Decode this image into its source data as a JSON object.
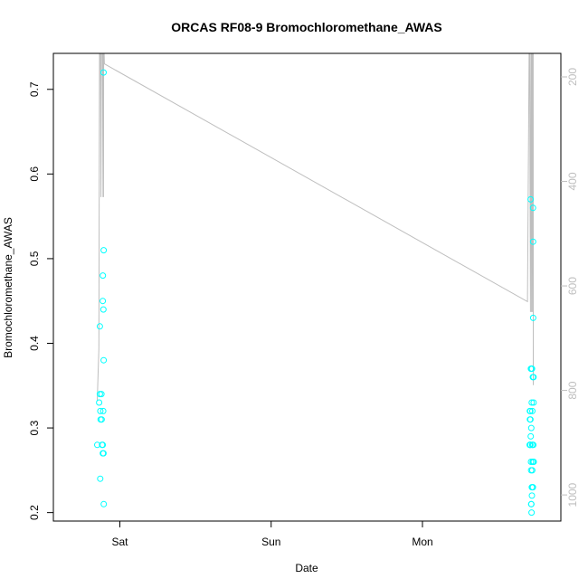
{
  "chart_data": {
    "type": "scatter",
    "title": "ORCAS RF08-9 Bromochloromethane_AWAS",
    "xlabel": "Date",
    "ylabel": "Bromochloromethane_AWAS",
    "x_ticks": [
      "Sat",
      "Sun",
      "Mon"
    ],
    "y_ticks": [
      0.2,
      0.3,
      0.4,
      0.5,
      0.6,
      0.7
    ],
    "y2_ticks": [
      200,
      400,
      600,
      800,
      1000
    ],
    "ylim": [
      0.19,
      0.7425
    ],
    "y2lim": [
      1050,
      155
    ],
    "grid": false,
    "colors": {
      "points": "#00ffff",
      "line": "#bebebe",
      "axis": "#000000",
      "right_axis": "#bebebe"
    },
    "series": [
      {
        "kind": "points",
        "points": [
          {
            "x": "Fri 20:25",
            "y": 0.28
          },
          {
            "x": "Fri 20:43",
            "y": 0.33
          },
          {
            "x": "Fri 20:50",
            "y": 0.42
          },
          {
            "x": "Fri 20:50",
            "y": 0.34
          },
          {
            "x": "Fri 20:53",
            "y": 0.24
          },
          {
            "x": "Fri 20:54",
            "y": 0.32
          },
          {
            "x": "Fri 20:57",
            "y": 0.31
          },
          {
            "x": "Fri 21:04",
            "y": 0.34
          },
          {
            "x": "Fri 21:07",
            "y": 0.31
          },
          {
            "x": "Fri 21:10",
            "y": 0.28
          },
          {
            "x": "Fri 21:17",
            "y": 0.28
          },
          {
            "x": "Fri 21:17",
            "y": 0.45
          },
          {
            "x": "Fri 21:18",
            "y": 0.48
          },
          {
            "x": "Fri 21:18",
            "y": 0.27
          },
          {
            "x": "Fri 21:22",
            "y": 0.32
          },
          {
            "x": "Fri 21:23",
            "y": 0.44
          },
          {
            "x": "Fri 21:24",
            "y": 0.27
          },
          {
            "x": "Fri 21:25",
            "y": 0.72
          },
          {
            "x": "Fri 21:26",
            "y": 0.51
          },
          {
            "x": "Fri 21:26",
            "y": 0.38
          },
          {
            "x": "Fri 21:27",
            "y": 0.21
          },
          {
            "x": "Mon 17:00",
            "y": 0.28
          },
          {
            "x": "Mon 17:02",
            "y": 0.32
          },
          {
            "x": "Mon 17:03",
            "y": 0.31
          },
          {
            "x": "Mon 17:04",
            "y": 0.28
          },
          {
            "x": "Mon 17:05",
            "y": 0.28
          },
          {
            "x": "Mon 17:06",
            "y": 0.32
          },
          {
            "x": "Mon 17:07",
            "y": 0.28
          },
          {
            "x": "Mon 17:08",
            "y": 0.31
          },
          {
            "x": "Mon 17:10",
            "y": 0.57
          },
          {
            "x": "Mon 17:11",
            "y": 0.29
          },
          {
            "x": "Mon 17:12",
            "y": 0.37
          },
          {
            "x": "Mon 17:13",
            "y": 0.26
          },
          {
            "x": "Mon 17:14",
            "y": 0.25
          },
          {
            "x": "Mon 17:15",
            "y": 0.21
          },
          {
            "x": "Mon 17:16",
            "y": 0.3
          },
          {
            "x": "Mon 17:17",
            "y": 0.21
          },
          {
            "x": "Mon 17:18",
            "y": 0.2
          },
          {
            "x": "Mon 17:19",
            "y": 0.37
          },
          {
            "x": "Mon 17:20",
            "y": 0.33
          },
          {
            "x": "Mon 17:21",
            "y": 0.23
          },
          {
            "x": "Mon 17:22",
            "y": 0.22
          },
          {
            "x": "Mon 17:23",
            "y": 0.37
          },
          {
            "x": "Mon 17:24",
            "y": 0.28
          },
          {
            "x": "Mon 17:25",
            "y": 0.25
          },
          {
            "x": "Mon 17:26",
            "y": 0.32
          },
          {
            "x": "Mon 17:27",
            "y": 0.28
          },
          {
            "x": "Mon 17:28",
            "y": 0.23
          },
          {
            "x": "Mon 17:29",
            "y": 0.26
          },
          {
            "x": "Mon 17:30",
            "y": 0.36
          },
          {
            "x": "Mon 17:31",
            "y": 0.23
          },
          {
            "x": "Mon 17:32",
            "y": 0.56
          },
          {
            "x": "Mon 17:33",
            "y": 0.52
          },
          {
            "x": "Mon 17:34",
            "y": 0.43
          },
          {
            "x": "Mon 17:35",
            "y": 0.26
          },
          {
            "x": "Mon 17:36",
            "y": 0.28
          },
          {
            "x": "Mon 17:37",
            "y": 0.36
          },
          {
            "x": "Mon 17:38",
            "y": 0.33
          },
          {
            "x": "Mon 17:39",
            "y": 0.26
          }
        ]
      },
      {
        "kind": "line",
        "axis": "right",
        "points": [
          {
            "x": "Fri 20:25",
            "y2": 820
          },
          {
            "x": "Fri 20:40",
            "y2": 720
          },
          {
            "x": "Fri 20:46",
            "y2": 155
          },
          {
            "x": "Fri 20:55",
            "y2": 155
          },
          {
            "x": "Fri 21:00",
            "y2": 430
          },
          {
            "x": "Fri 21:04",
            "y2": 155
          },
          {
            "x": "Fri 21:15",
            "y2": 155
          },
          {
            "x": "Fri 21:20",
            "y2": 430
          },
          {
            "x": "Fri 21:22",
            "y2": 155
          },
          {
            "x": "Fri 21:24",
            "y2": 430
          },
          {
            "x": "Fri 21:26",
            "y2": 155
          },
          {
            "x": "Fri 21:30",
            "y2": 155
          },
          {
            "x": "Fri 21:33",
            "y2": 175
          },
          {
            "x": "Mon 16:40",
            "y2": 630
          },
          {
            "x": "Mon 16:55",
            "y2": 155
          },
          {
            "x": "Mon 17:00",
            "y2": 155
          },
          {
            "x": "Mon 17:08",
            "y2": 650
          },
          {
            "x": "Mon 17:12",
            "y2": 155
          },
          {
            "x": "Mon 17:16",
            "y2": 155
          },
          {
            "x": "Mon 17:18",
            "y2": 650
          },
          {
            "x": "Mon 17:22",
            "y2": 155
          },
          {
            "x": "Mon 17:26",
            "y2": 155
          },
          {
            "x": "Mon 17:28",
            "y2": 650
          },
          {
            "x": "Mon 17:32",
            "y2": 155
          },
          {
            "x": "Mon 17:34",
            "y2": 155
          },
          {
            "x": "Mon 17:35",
            "y2": 790
          }
        ]
      }
    ]
  }
}
